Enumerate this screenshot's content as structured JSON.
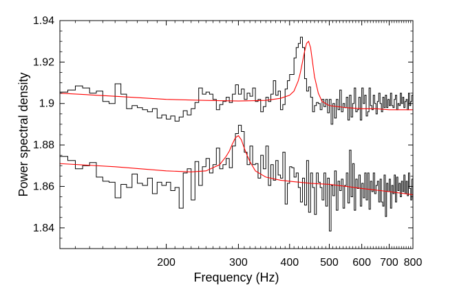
{
  "chart_data": {
    "type": "line",
    "title": "",
    "xlabel": "Frequency (Hz)",
    "ylabel": "Power spectral density",
    "x_scale": "log",
    "xlim": [
      110,
      800
    ],
    "ylim": [
      1.83,
      1.94
    ],
    "x_ticks": [
      200,
      300,
      400,
      500,
      600,
      700,
      800
    ],
    "x_tick_labels": [
      "200",
      "300",
      "400",
      "500",
      "600",
      "700",
      "800"
    ],
    "y_ticks": [
      1.84,
      1.86,
      1.88,
      1.9,
      1.92,
      1.94
    ],
    "y_tick_labels": [
      "1.84",
      "1.86",
      "1.88",
      "1.9",
      "1.92",
      "1.94"
    ],
    "grid": false,
    "colors": {
      "data": "#000000",
      "fit": "#ff0000"
    },
    "series": [
      {
        "style": "steps",
        "color": "#000000",
        "x": [
          110,
          115,
          120,
          125,
          130,
          135,
          140,
          145,
          150,
          155,
          160,
          165,
          170,
          175,
          180,
          185,
          190,
          195,
          200,
          205,
          210,
          215,
          220,
          225,
          230,
          235,
          240,
          245,
          250,
          255,
          260,
          265,
          270,
          275,
          280,
          285,
          290,
          295,
          300,
          305,
          310,
          315,
          320,
          325,
          330,
          335,
          340,
          345,
          350,
          355,
          360,
          365,
          370,
          375,
          380,
          385,
          390,
          395,
          400,
          405,
          410,
          415,
          420,
          425,
          430,
          435,
          440,
          445,
          450,
          455,
          460,
          465,
          470,
          475,
          480,
          485,
          490,
          495,
          500,
          505,
          510,
          515,
          520,
          525,
          530,
          535,
          540,
          545,
          550,
          555,
          560,
          565,
          570,
          575,
          580,
          585,
          590,
          595,
          600,
          605,
          610,
          615,
          620,
          625,
          630,
          635,
          640,
          645,
          650,
          655,
          660,
          665,
          670,
          675,
          680,
          685,
          690,
          695,
          700,
          705,
          710,
          715,
          720,
          725,
          730,
          735,
          740,
          745,
          750,
          755,
          760,
          765,
          770,
          775,
          780,
          785,
          790,
          795,
          800
        ],
        "y": [
          1.9055,
          1.9065,
          1.9085,
          1.9075,
          1.905,
          1.906,
          1.901,
          1.9,
          1.9095,
          1.9045,
          1.8975,
          1.899,
          1.898,
          1.897,
          1.896,
          1.8975,
          1.893,
          1.8945,
          1.8925,
          1.894,
          1.8915,
          1.8935,
          1.8965,
          1.8945,
          1.8975,
          1.9005,
          1.9075,
          1.9045,
          1.9055,
          1.9045,
          1.902,
          1.897,
          1.8995,
          1.901,
          1.903,
          1.9005,
          1.9045,
          1.909,
          1.9045,
          1.907,
          1.902,
          1.905,
          1.9035,
          1.9075,
          1.901,
          1.902,
          1.896,
          1.8985,
          1.903,
          1.901,
          1.9045,
          1.911,
          1.904,
          1.906,
          1.897,
          1.8995,
          1.907,
          1.911,
          1.914,
          1.914,
          1.922,
          1.927,
          1.929,
          1.932,
          1.927,
          1.912,
          1.906,
          1.908,
          1.903,
          1.896,
          1.899,
          1.9005,
          1.9,
          1.897,
          1.902,
          1.8985,
          1.902,
          1.8955,
          1.902,
          1.89,
          1.9,
          1.893,
          1.902,
          1.897,
          1.9065,
          1.896,
          1.9,
          1.898,
          1.903,
          1.892,
          1.904,
          1.8935,
          1.9,
          1.9075,
          1.896,
          1.897,
          1.903,
          1.892,
          1.9075,
          1.9,
          1.904,
          1.894,
          1.896,
          1.9075,
          1.899,
          1.897,
          1.904,
          1.9,
          1.895,
          1.901,
          1.905,
          1.9,
          1.896,
          1.903,
          1.898,
          1.904,
          1.898,
          1.902,
          1.899,
          1.905,
          1.899,
          1.898,
          1.902,
          1.904,
          1.897,
          1.9,
          1.899,
          1.905,
          1.9,
          1.903,
          1.898,
          1.901,
          1.902,
          1.897,
          1.905,
          1.899,
          1.901,
          1.904,
          1.9
        ]
      },
      {
        "style": "line",
        "color": "#ff0000",
        "x": [
          110,
          150,
          200,
          250,
          300,
          350,
          380,
          400,
          410,
          420,
          425,
          430,
          435,
          440,
          445,
          450,
          455,
          460,
          470,
          480,
          500,
          550,
          600,
          650,
          700,
          750,
          800
        ],
        "y": [
          1.905,
          1.9035,
          1.902,
          1.9015,
          1.9012,
          1.9015,
          1.9025,
          1.904,
          1.906,
          1.911,
          1.915,
          1.92,
          1.925,
          1.929,
          1.93,
          1.927,
          1.92,
          1.913,
          1.905,
          1.901,
          1.899,
          1.898,
          1.8975,
          1.8975,
          1.897,
          1.897,
          1.897
        ]
      },
      {
        "style": "steps",
        "color": "#000000",
        "x": [
          110,
          115,
          120,
          125,
          130,
          135,
          140,
          145,
          150,
          155,
          160,
          165,
          170,
          175,
          180,
          185,
          190,
          195,
          200,
          205,
          210,
          215,
          220,
          225,
          230,
          235,
          240,
          245,
          250,
          255,
          260,
          265,
          270,
          275,
          280,
          285,
          290,
          295,
          300,
          305,
          310,
          315,
          320,
          325,
          330,
          335,
          340,
          345,
          350,
          355,
          360,
          365,
          370,
          375,
          380,
          385,
          390,
          395,
          400,
          405,
          410,
          415,
          420,
          425,
          430,
          435,
          440,
          445,
          450,
          455,
          460,
          465,
          470,
          475,
          480,
          485,
          490,
          495,
          500,
          505,
          510,
          515,
          520,
          525,
          530,
          535,
          540,
          545,
          550,
          555,
          560,
          565,
          570,
          575,
          580,
          585,
          590,
          595,
          600,
          605,
          610,
          615,
          620,
          625,
          630,
          635,
          640,
          645,
          650,
          655,
          660,
          665,
          670,
          675,
          680,
          685,
          690,
          695,
          700,
          705,
          710,
          715,
          720,
          725,
          730,
          735,
          740,
          745,
          750,
          755,
          760,
          765,
          770,
          775,
          780,
          785,
          790,
          795,
          800
        ],
        "y": [
          1.8745,
          1.8725,
          1.8685,
          1.87,
          1.8715,
          1.8645,
          1.8625,
          1.862,
          1.8545,
          1.861,
          1.8595,
          1.866,
          1.8615,
          1.8605,
          1.864,
          1.8565,
          1.862,
          1.8605,
          1.862,
          1.858,
          1.8595,
          1.8495,
          1.8665,
          1.8685,
          1.8535,
          1.872,
          1.8605,
          1.8695,
          1.8735,
          1.8665,
          1.8705,
          1.8785,
          1.8685,
          1.8705,
          1.8735,
          1.869,
          1.8795,
          1.8855,
          1.8895,
          1.8865,
          1.8765,
          1.8705,
          1.8795,
          1.8705,
          1.871,
          1.864,
          1.875,
          1.8685,
          1.8795,
          1.8605,
          1.8705,
          1.863,
          1.8725,
          1.8655,
          1.864,
          1.8765,
          1.8515,
          1.8615,
          1.8695,
          1.869,
          1.8645,
          1.8665,
          1.8595,
          1.8525,
          1.864,
          1.851,
          1.8725,
          1.8475,
          1.8665,
          1.8595,
          1.8465,
          1.8665,
          1.862,
          1.8595,
          1.8535,
          1.8665,
          1.8505,
          1.864,
          1.8385,
          1.8605,
          1.8555,
          1.8675,
          1.8485,
          1.8625,
          1.858,
          1.8635,
          1.8495,
          1.8605,
          1.8665,
          1.852,
          1.8775,
          1.855,
          1.871,
          1.8485,
          1.8635,
          1.859,
          1.8655,
          1.8505,
          1.8615,
          1.8545,
          1.8665,
          1.8535,
          1.8665,
          1.849,
          1.8625,
          1.8575,
          1.8665,
          1.8565,
          1.8605,
          1.8625,
          1.8525,
          1.8635,
          1.8525,
          1.8505,
          1.8655,
          1.8455,
          1.8615,
          1.8575,
          1.8635,
          1.8495,
          1.8605,
          1.8565,
          1.8655,
          1.8525,
          1.8645,
          1.858,
          1.8615,
          1.855,
          1.8625,
          1.8575,
          1.8655,
          1.8565,
          1.8625,
          1.8555,
          1.8665,
          1.859,
          1.8535,
          1.8635,
          1.8575
        ]
      },
      {
        "style": "line",
        "color": "#ff0000",
        "x": [
          110,
          150,
          200,
          230,
          250,
          270,
          280,
          285,
          290,
          295,
          300,
          305,
          310,
          315,
          320,
          330,
          350,
          380,
          400,
          450,
          500,
          550,
          600,
          700,
          800
        ],
        "y": [
          1.871,
          1.8695,
          1.8675,
          1.867,
          1.8675,
          1.8705,
          1.8745,
          1.877,
          1.8805,
          1.8835,
          1.8845,
          1.8825,
          1.8785,
          1.875,
          1.872,
          1.8675,
          1.8645,
          1.863,
          1.8625,
          1.8615,
          1.861,
          1.86,
          1.859,
          1.8575,
          1.856
        ]
      }
    ]
  }
}
